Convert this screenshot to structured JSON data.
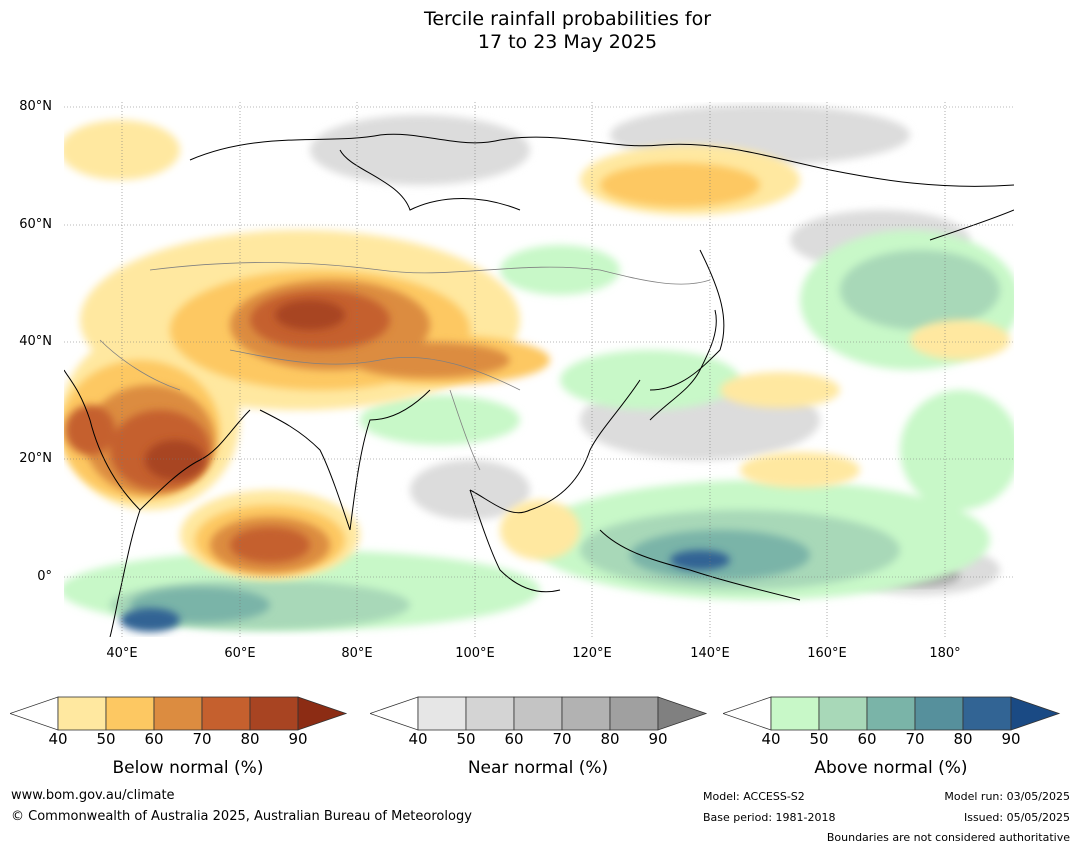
{
  "title": {
    "line1": "Tercile rainfall probabilities for",
    "line2": "17 to 23 May 2025"
  },
  "map": {
    "lat_labels": [
      "80°N",
      "60°N",
      "40°N",
      "20°N",
      "0°"
    ],
    "lon_labels": [
      "40°E",
      "60°E",
      "80°E",
      "100°E",
      "120°E",
      "140°E",
      "160°E",
      "180°"
    ],
    "extent": {
      "lon_min": 30,
      "lon_max": 192,
      "lat_min": -10,
      "lat_max": 80
    },
    "graticule": "dotted"
  },
  "colorbars": [
    {
      "name": "below",
      "title": "Below normal (%)",
      "ticks": [
        "40",
        "50",
        "60",
        "70",
        "80",
        "90"
      ],
      "colors": [
        "#ffffff",
        "#ffe8a0",
        "#fdc862",
        "#dc8c40",
        "#c5602e",
        "#a84422",
        "#8c2c14"
      ]
    },
    {
      "name": "near",
      "title": "Near normal (%)",
      "ticks": [
        "40",
        "50",
        "60",
        "70",
        "80",
        "90"
      ],
      "colors": [
        "#ffffff",
        "#e6e6e6",
        "#d4d4d4",
        "#c4c4c4",
        "#b2b2b2",
        "#a0a0a0",
        "#808080"
      ]
    },
    {
      "name": "above",
      "title": "Above normal (%)",
      "ticks": [
        "40",
        "50",
        "60",
        "70",
        "80",
        "90"
      ],
      "colors": [
        "#ffffff",
        "#c8f8c8",
        "#a8d8b8",
        "#7ab4a8",
        "#56909c",
        "#326494",
        "#1a4a84"
      ]
    }
  ],
  "footer": {
    "url": "www.bom.gov.au/climate",
    "copyright": "© Commonwealth of Australia 2025, Australian Bureau of Meteorology",
    "model": "Model: ACCESS-S2",
    "base_period": "Base period: 1981-2018",
    "model_run": "Model run: 03/05/2025",
    "issued": "Issued: 05/05/2025",
    "boundaries": "Boundaries are not considered authoritative"
  }
}
